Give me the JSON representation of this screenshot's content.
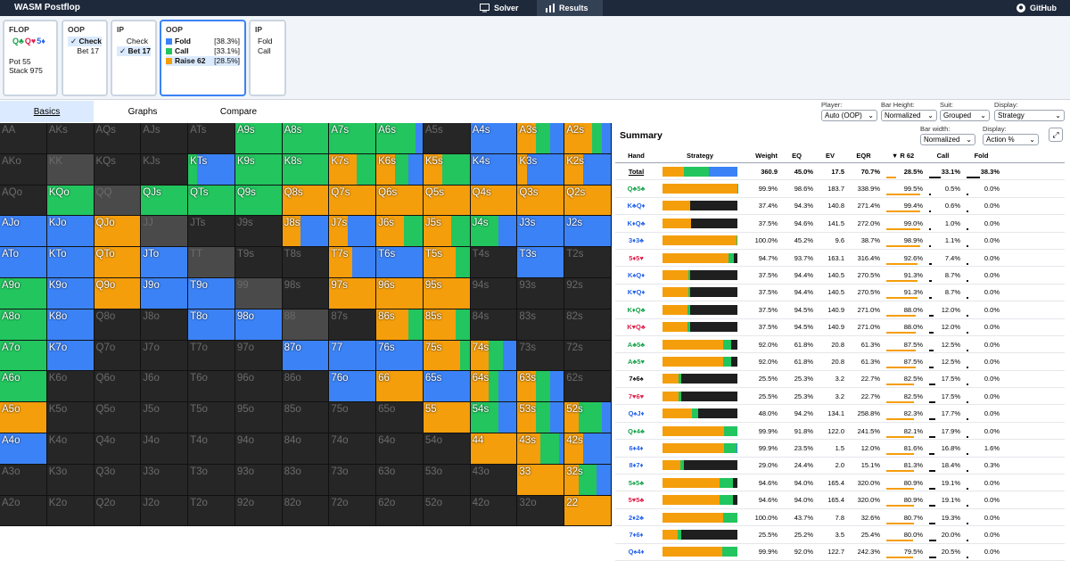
{
  "app": {
    "title": "WASM Postflop",
    "solver": "Solver",
    "results": "Results",
    "github": "GitHub"
  },
  "nodes": {
    "flop": {
      "title": "FLOP",
      "cards": [
        {
          "t": "Q♣",
          "c": "#16a34a"
        },
        {
          "t": "Q♥",
          "c": "#e11d48"
        },
        {
          "t": "5♦",
          "c": "#2563eb"
        }
      ],
      "pot": "Pot 55",
      "stack": "Stack 975"
    },
    "oop1": {
      "title": "OOP",
      "opts": [
        "✓ Check",
        "Bet 17"
      ]
    },
    "ip1": {
      "title": "IP",
      "opts": [
        "Check",
        "✓ Bet 17"
      ]
    },
    "oop2": {
      "title": "OOP",
      "actions": [
        {
          "name": "Fold",
          "pct": "[38.3%]",
          "color": "#3b82f6"
        },
        {
          "name": "Call",
          "pct": "[33.1%]",
          "color": "#22c55e"
        },
        {
          "name": "Raise 62",
          "pct": "[28.5%]",
          "color": "#f59e0b"
        }
      ]
    },
    "ip2": {
      "title": "IP",
      "opts": [
        "Fold",
        "Call"
      ]
    }
  },
  "tabs": {
    "basics": "Basics",
    "graphs": "Graphs",
    "compare": "Compare"
  },
  "colors": {
    "raise": "#f59e0b",
    "call": "#22c55e",
    "fold": "#3b82f6",
    "empty": "#262626"
  },
  "controls": {
    "player": {
      "label": "Player:",
      "value": "Auto (OOP)"
    },
    "barheight": {
      "label": "Bar Height:",
      "value": "Normalized"
    },
    "suit": {
      "label": "Suit:",
      "value": "Grouped"
    },
    "display": {
      "label": "Display:",
      "value": "Strategy"
    },
    "barwidth": {
      "label": "Bar width:",
      "value": "Normalized"
    },
    "display2": {
      "label": "Display:",
      "value": "Action %"
    }
  },
  "summary": {
    "title": "Summary",
    "headers": [
      "Hand",
      "Strategy",
      "Weight",
      "EQ",
      "EV",
      "EQR",
      "▼ R 62",
      "Call",
      "Fold"
    ],
    "total": {
      "hand": "Total",
      "weight": "360.9",
      "eq": "45.0%",
      "ev": "17.5",
      "eqr": "70.7%",
      "r": "28.5%",
      "call": "33.1%",
      "fold": "38.3%",
      "mix": [
        28.5,
        33.1,
        38.3
      ]
    },
    "rows": [
      {
        "hand": "Q♣5♣",
        "hc": "#16a34a",
        "weight": "99.9%",
        "eq": "98.6%",
        "ev": "183.7",
        "eqr": "338.9%",
        "r": "99.5%",
        "call": "0.5%",
        "fold": "0.0%",
        "mix": [
          99.5,
          0.5,
          0
        ]
      },
      {
        "hand": "K♣Q♦",
        "hc": "#2563eb",
        "weight": "37.4%",
        "eq": "94.3%",
        "ev": "140.8",
        "eqr": "271.4%",
        "r": "99.4%",
        "call": "0.6%",
        "fold": "0.0%",
        "mix": [
          37.4,
          0,
          0
        ],
        "emp": 62.6
      },
      {
        "hand": "K♦Q♣",
        "hc": "#2563eb",
        "weight": "37.5%",
        "eq": "94.6%",
        "ev": "141.5",
        "eqr": "272.0%",
        "r": "99.0%",
        "call": "1.0%",
        "fold": "0.0%",
        "mix": [
          37.5,
          0,
          0
        ],
        "emp": 62.5
      },
      {
        "hand": "3♦3♣",
        "hc": "#2563eb",
        "weight": "100.0%",
        "eq": "45.2%",
        "ev": "9.6",
        "eqr": "38.7%",
        "r": "98.9%",
        "call": "1.1%",
        "fold": "0.0%",
        "mix": [
          98.9,
          1.1,
          0
        ]
      },
      {
        "hand": "5♦5♥",
        "hc": "#e11d48",
        "weight": "94.7%",
        "eq": "93.7%",
        "ev": "163.1",
        "eqr": "316.4%",
        "r": "92.6%",
        "call": "7.4%",
        "fold": "0.0%",
        "mix": [
          87.6,
          7.1,
          0
        ],
        "emp": 5.3
      },
      {
        "hand": "K♠Q♦",
        "hc": "#2563eb",
        "weight": "37.5%",
        "eq": "94.4%",
        "ev": "140.5",
        "eqr": "270.5%",
        "r": "91.3%",
        "call": "8.7%",
        "fold": "0.0%",
        "mix": [
          34.2,
          3.3,
          0
        ],
        "emp": 62.5
      },
      {
        "hand": "K♥Q♦",
        "hc": "#2563eb",
        "weight": "37.5%",
        "eq": "94.4%",
        "ev": "140.5",
        "eqr": "270.5%",
        "r": "91.3%",
        "call": "8.7%",
        "fold": "0.0%",
        "mix": [
          34.2,
          3.3,
          0
        ],
        "emp": 62.5
      },
      {
        "hand": "K♦Q♣",
        "hc": "#16a34a",
        "weight": "37.5%",
        "eq": "94.5%",
        "ev": "140.9",
        "eqr": "271.0%",
        "r": "88.0%",
        "call": "12.0%",
        "fold": "0.0%",
        "mix": [
          33,
          4.5,
          0
        ],
        "emp": 62.5
      },
      {
        "hand": "K♥Q♣",
        "hc": "#e11d48",
        "weight": "37.5%",
        "eq": "94.5%",
        "ev": "140.9",
        "eqr": "271.0%",
        "r": "88.0%",
        "call": "12.0%",
        "fold": "0.0%",
        "mix": [
          33,
          4.5,
          0
        ],
        "emp": 62.5
      },
      {
        "hand": "A♣5♣",
        "hc": "#16a34a",
        "weight": "92.0%",
        "eq": "61.8%",
        "ev": "20.8",
        "eqr": "61.3%",
        "r": "87.5%",
        "call": "12.5%",
        "fold": "0.0%",
        "mix": [
          80.5,
          11.5,
          0
        ],
        "emp": 8
      },
      {
        "hand": "A♣5♥",
        "hc": "#16a34a",
        "weight": "92.0%",
        "eq": "61.8%",
        "ev": "20.8",
        "eqr": "61.3%",
        "r": "87.5%",
        "call": "12.5%",
        "fold": "0.0%",
        "mix": [
          80.5,
          11.5,
          0
        ],
        "emp": 8
      },
      {
        "hand": "7♠6♠",
        "hc": "#111111",
        "weight": "25.5%",
        "eq": "25.3%",
        "ev": "3.2",
        "eqr": "22.7%",
        "r": "82.5%",
        "call": "17.5%",
        "fold": "0.0%",
        "mix": [
          21,
          4.5,
          0
        ],
        "emp": 74.5
      },
      {
        "hand": "7♥6♥",
        "hc": "#e11d48",
        "weight": "25.5%",
        "eq": "25.3%",
        "ev": "3.2",
        "eqr": "22.7%",
        "r": "82.5%",
        "call": "17.5%",
        "fold": "0.0%",
        "mix": [
          21,
          4.5,
          0
        ],
        "emp": 74.5
      },
      {
        "hand": "Q♠J♦",
        "hc": "#2563eb",
        "weight": "48.0%",
        "eq": "94.2%",
        "ev": "134.1",
        "eqr": "258.8%",
        "r": "82.3%",
        "call": "17.7%",
        "fold": "0.0%",
        "mix": [
          39.5,
          8.5,
          0
        ],
        "emp": 52
      },
      {
        "hand": "Q♦4♣",
        "hc": "#16a34a",
        "weight": "99.9%",
        "eq": "91.8%",
        "ev": "122.0",
        "eqr": "241.5%",
        "r": "82.1%",
        "call": "17.9%",
        "fold": "0.0%",
        "mix": [
          82.1,
          17.8,
          0
        ]
      },
      {
        "hand": "6♦4♦",
        "hc": "#2563eb",
        "weight": "99.9%",
        "eq": "23.5%",
        "ev": "1.5",
        "eqr": "12.0%",
        "r": "81.6%",
        "call": "16.8%",
        "fold": "1.6%",
        "mix": [
          81.6,
          16.8,
          1.6
        ]
      },
      {
        "hand": "8♦7♦",
        "hc": "#2563eb",
        "weight": "29.0%",
        "eq": "24.4%",
        "ev": "2.0",
        "eqr": "15.1%",
        "r": "81.3%",
        "call": "18.4%",
        "fold": "0.3%",
        "mix": [
          23.6,
          5.3,
          0.1
        ],
        "emp": 71
      },
      {
        "hand": "5♠5♣",
        "hc": "#16a34a",
        "weight": "94.6%",
        "eq": "94.0%",
        "ev": "165.4",
        "eqr": "320.0%",
        "r": "80.9%",
        "call": "19.1%",
        "fold": "0.0%",
        "mix": [
          76.5,
          18.1,
          0
        ],
        "emp": 5.4
      },
      {
        "hand": "5♥5♣",
        "hc": "#e11d48",
        "weight": "94.6%",
        "eq": "94.0%",
        "ev": "165.4",
        "eqr": "320.0%",
        "r": "80.9%",
        "call": "19.1%",
        "fold": "0.0%",
        "mix": [
          76.5,
          18.1,
          0
        ],
        "emp": 5.4
      },
      {
        "hand": "2♦2♣",
        "hc": "#2563eb",
        "weight": "100.0%",
        "eq": "43.7%",
        "ev": "7.8",
        "eqr": "32.6%",
        "r": "80.7%",
        "call": "19.3%",
        "fold": "0.0%",
        "mix": [
          80.7,
          19.3,
          0
        ]
      },
      {
        "hand": "7♦6♦",
        "hc": "#2563eb",
        "weight": "25.5%",
        "eq": "25.2%",
        "ev": "3.5",
        "eqr": "25.4%",
        "r": "80.0%",
        "call": "20.0%",
        "fold": "0.0%",
        "mix": [
          20.4,
          5.1,
          0
        ],
        "emp": 74.5
      },
      {
        "hand": "Q♠4♦",
        "hc": "#2563eb",
        "weight": "99.9%",
        "eq": "92.0%",
        "ev": "122.7",
        "eqr": "242.3%",
        "r": "79.5%",
        "call": "20.5%",
        "fold": "0.0%",
        "mix": [
          79.5,
          20.5,
          0
        ]
      }
    ]
  },
  "grid": [
    [
      [
        "AA"
      ],
      [
        "AKs"
      ],
      [
        "AQs"
      ],
      [
        "AJs"
      ],
      [
        "ATs"
      ],
      [
        "A9s",
        0,
        100,
        0
      ],
      [
        "A8s",
        0,
        100,
        0
      ],
      [
        "A7s",
        0,
        100,
        0
      ],
      [
        "A6s",
        0,
        85,
        15
      ],
      [
        "A5s"
      ],
      [
        "A4s",
        0,
        0,
        100
      ],
      [
        "A3s",
        40,
        30,
        30
      ],
      [
        "A2s",
        60,
        20,
        20
      ]
    ],
    [
      [
        "AKo"
      ],
      [
        "KK",
        0,
        0,
        0,
        1
      ],
      [
        "KQs"
      ],
      [
        "KJs"
      ],
      [
        "KTs",
        0,
        20,
        80
      ],
      [
        "K9s",
        0,
        100,
        0
      ],
      [
        "K8s",
        0,
        100,
        0
      ],
      [
        "K7s",
        60,
        40,
        0
      ],
      [
        "K6s",
        40,
        30,
        30
      ],
      [
        "K5s",
        40,
        60,
        0
      ],
      [
        "K4s",
        0,
        0,
        100
      ],
      [
        "K3s",
        20,
        0,
        80
      ],
      [
        "K2s",
        40,
        0,
        60
      ]
    ],
    [
      [
        "AQo"
      ],
      [
        "KQo",
        0,
        100,
        0
      ],
      [
        "QQ",
        0,
        0,
        0,
        1
      ],
      [
        "QJs",
        0,
        100,
        0
      ],
      [
        "QTs",
        0,
        100,
        0
      ],
      [
        "Q9s",
        0,
        100,
        0
      ],
      [
        "Q8s",
        100,
        0,
        0
      ],
      [
        "Q7s",
        100,
        0,
        0
      ],
      [
        "Q6s",
        100,
        0,
        0
      ],
      [
        "Q5s",
        100,
        0,
        0
      ],
      [
        "Q4s",
        100,
        0,
        0
      ],
      [
        "Q3s",
        100,
        0,
        0
      ],
      [
        "Q2s",
        100,
        0,
        0
      ]
    ],
    [
      [
        "AJo",
        0,
        0,
        100
      ],
      [
        "KJo",
        0,
        0,
        100
      ],
      [
        "QJo",
        100,
        0,
        0
      ],
      [
        "JJ",
        0,
        0,
        0,
        1
      ],
      [
        "JTs"
      ],
      [
        "J9s"
      ],
      [
        "J8s",
        40,
        0,
        60
      ],
      [
        "J7s",
        40,
        0,
        60
      ],
      [
        "J6s",
        60,
        40,
        0
      ],
      [
        "J5s",
        60,
        40,
        0
      ],
      [
        "J4s",
        0,
        60,
        40
      ],
      [
        "J3s",
        0,
        0,
        100
      ],
      [
        "J2s",
        0,
        0,
        100
      ]
    ],
    [
      [
        "ATo",
        0,
        0,
        100
      ],
      [
        "KTo",
        0,
        0,
        100
      ],
      [
        "QTo",
        100,
        0,
        0
      ],
      [
        "JTo",
        0,
        0,
        100
      ],
      [
        "TT",
        0,
        0,
        0,
        1
      ],
      [
        "T9s"
      ],
      [
        "T8s"
      ],
      [
        "T7s",
        50,
        0,
        50
      ],
      [
        "T6s",
        0,
        0,
        100
      ],
      [
        "T5s",
        70,
        30,
        0
      ],
      [
        "T4s"
      ],
      [
        "T3s",
        0,
        0,
        100
      ],
      [
        "T2s"
      ]
    ],
    [
      [
        "A9o",
        0,
        100,
        0
      ],
      [
        "K9o",
        0,
        0,
        100
      ],
      [
        "Q9o",
        100,
        0,
        0
      ],
      [
        "J9o",
        0,
        0,
        100
      ],
      [
        "T9o",
        0,
        0,
        100
      ],
      [
        "99",
        0,
        0,
        0,
        1
      ],
      [
        "98s"
      ],
      [
        "97s",
        100,
        0,
        0
      ],
      [
        "96s",
        100,
        0,
        0
      ],
      [
        "95s",
        100,
        0,
        0
      ],
      [
        "94s"
      ],
      [
        "93s"
      ],
      [
        "92s"
      ]
    ],
    [
      [
        "A8o",
        0,
        100,
        0
      ],
      [
        "K8o",
        0,
        0,
        100
      ],
      [
        "Q8o"
      ],
      [
        "J8o"
      ],
      [
        "T8o",
        0,
        0,
        100
      ],
      [
        "98o",
        0,
        0,
        100
      ],
      [
        "88",
        0,
        0,
        0,
        1
      ],
      [
        "87s"
      ],
      [
        "86s",
        70,
        30,
        0
      ],
      [
        "85s",
        70,
        30,
        0
      ],
      [
        "84s"
      ],
      [
        "83s"
      ],
      [
        "82s"
      ]
    ],
    [
      [
        "A7o",
        0,
        100,
        0
      ],
      [
        "K7o",
        0,
        0,
        100
      ],
      [
        "Q7o"
      ],
      [
        "J7o"
      ],
      [
        "T7o"
      ],
      [
        "97o"
      ],
      [
        "87o",
        0,
        0,
        100
      ],
      [
        "77",
        0,
        0,
        100
      ],
      [
        "76s",
        0,
        0,
        100
      ],
      [
        "75s",
        80,
        20,
        0
      ],
      [
        "74s",
        40,
        30,
        30
      ],
      [
        "73s"
      ],
      [
        "72s"
      ]
    ],
    [
      [
        "A6o",
        0,
        100,
        0
      ],
      [
        "K6o"
      ],
      [
        "Q6o"
      ],
      [
        "J6o"
      ],
      [
        "T6o"
      ],
      [
        "96o"
      ],
      [
        "86o"
      ],
      [
        "76o",
        0,
        0,
        100
      ],
      [
        "66",
        100,
        0,
        0
      ],
      [
        "65s",
        0,
        0,
        100
      ],
      [
        "64s",
        40,
        20,
        40
      ],
      [
        "63s",
        40,
        30,
        30
      ],
      [
        "62s"
      ]
    ],
    [
      [
        "A5o",
        100,
        0,
        0
      ],
      [
        "K5o"
      ],
      [
        "Q5o"
      ],
      [
        "J5o"
      ],
      [
        "T5o"
      ],
      [
        "95o"
      ],
      [
        "85o"
      ],
      [
        "75o"
      ],
      [
        "65o"
      ],
      [
        "55",
        100,
        0,
        0
      ],
      [
        "54s",
        0,
        60,
        40
      ],
      [
        "53s",
        40,
        30,
        30
      ],
      [
        "52s",
        30,
        50,
        20
      ]
    ],
    [
      [
        "A4o",
        0,
        0,
        100
      ],
      [
        "K4o"
      ],
      [
        "Q4o"
      ],
      [
        "J4o"
      ],
      [
        "T4o"
      ],
      [
        "94o"
      ],
      [
        "84o"
      ],
      [
        "74o"
      ],
      [
        "64o"
      ],
      [
        "54o"
      ],
      [
        "44",
        100,
        0,
        0
      ],
      [
        "43s",
        50,
        40,
        10
      ],
      [
        "42s",
        40,
        0,
        60
      ]
    ],
    [
      [
        "A3o"
      ],
      [
        "K3o"
      ],
      [
        "Q3o"
      ],
      [
        "J3o"
      ],
      [
        "T3o"
      ],
      [
        "93o"
      ],
      [
        "83o"
      ],
      [
        "73o"
      ],
      [
        "63o"
      ],
      [
        "53o"
      ],
      [
        "43o"
      ],
      [
        "33",
        100,
        0,
        0
      ],
      [
        "32s",
        30,
        40,
        30
      ]
    ],
    [
      [
        "A2o"
      ],
      [
        "K2o"
      ],
      [
        "Q2o"
      ],
      [
        "J2o"
      ],
      [
        "T2o"
      ],
      [
        "92o"
      ],
      [
        "82o"
      ],
      [
        "72o"
      ],
      [
        "62o"
      ],
      [
        "52o"
      ],
      [
        "42o"
      ],
      [
        "32o"
      ],
      [
        "22",
        100,
        0,
        0
      ]
    ]
  ]
}
